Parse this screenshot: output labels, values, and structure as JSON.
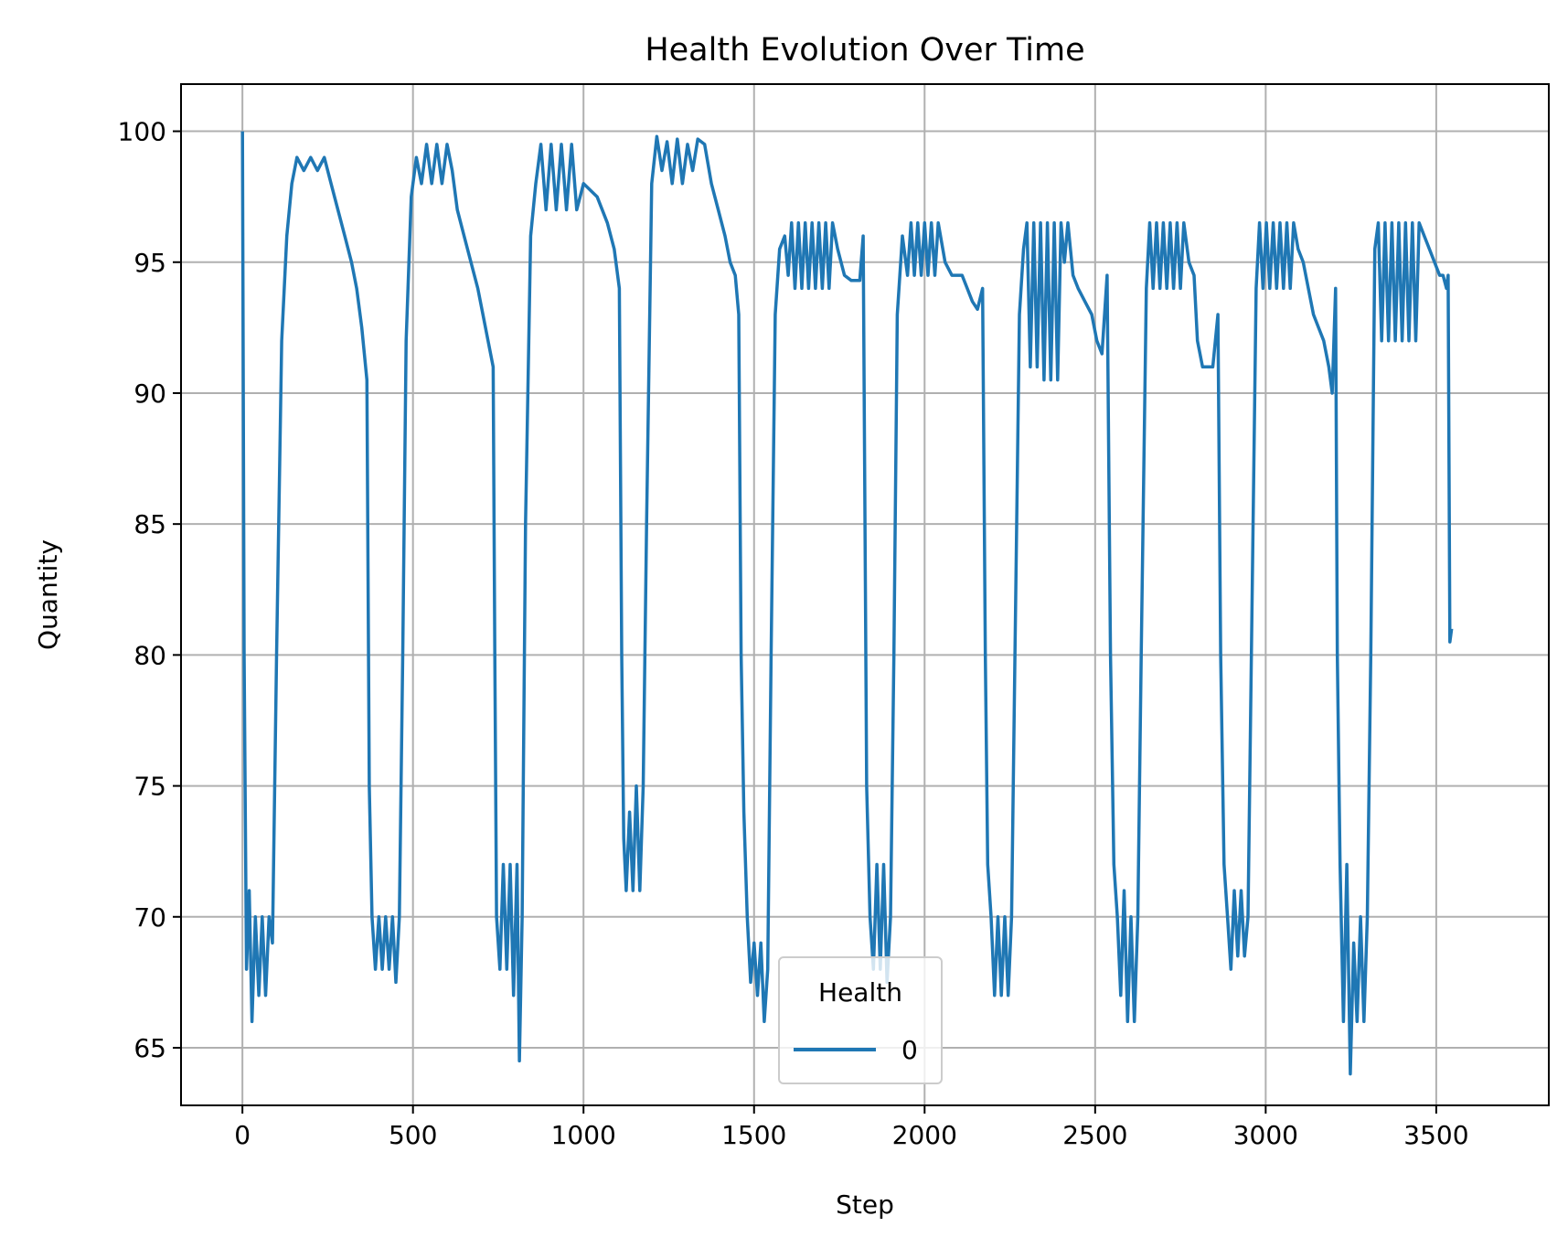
{
  "chart_data": {
    "type": "line",
    "title": "Health Evolution Over Time",
    "xlabel": "Step",
    "ylabel": "Quantity",
    "xlim": [
      -180,
      3830
    ],
    "ylim": [
      62.8,
      101.8
    ],
    "xticks": [
      0,
      500,
      1000,
      1500,
      2000,
      2500,
      3000,
      3500
    ],
    "yticks": [
      65,
      70,
      75,
      80,
      85,
      90,
      95,
      100
    ],
    "xtick_labels": [
      "0",
      "500",
      "1000",
      "1500",
      "2000",
      "2500",
      "3000",
      "3500"
    ],
    "ytick_labels": [
      "65",
      "70",
      "75",
      "80",
      "85",
      "90",
      "95",
      "100"
    ],
    "grid": true,
    "legend": {
      "title": "Health",
      "position": "lower center",
      "entries": [
        "0"
      ]
    },
    "series": [
      {
        "name": "0",
        "color": "#1f77b4",
        "points": [
          [
            0,
            100
          ],
          [
            5,
            80
          ],
          [
            12,
            68
          ],
          [
            20,
            71
          ],
          [
            28,
            66
          ],
          [
            38,
            70
          ],
          [
            48,
            67
          ],
          [
            58,
            70
          ],
          [
            68,
            67
          ],
          [
            78,
            70
          ],
          [
            88,
            69
          ],
          [
            100,
            80
          ],
          [
            115,
            92
          ],
          [
            130,
            96
          ],
          [
            145,
            98
          ],
          [
            160,
            99
          ],
          [
            180,
            98.5
          ],
          [
            200,
            99
          ],
          [
            220,
            98.5
          ],
          [
            240,
            99
          ],
          [
            260,
            98
          ],
          [
            280,
            97
          ],
          [
            300,
            96
          ],
          [
            320,
            95
          ],
          [
            335,
            94
          ],
          [
            350,
            92.5
          ],
          [
            365,
            90.5
          ],
          [
            372,
            75
          ],
          [
            380,
            70
          ],
          [
            390,
            68
          ],
          [
            400,
            70
          ],
          [
            410,
            68
          ],
          [
            420,
            70
          ],
          [
            430,
            68
          ],
          [
            440,
            70
          ],
          [
            450,
            67.5
          ],
          [
            460,
            70
          ],
          [
            470,
            80
          ],
          [
            480,
            92
          ],
          [
            495,
            97.5
          ],
          [
            510,
            99
          ],
          [
            525,
            98
          ],
          [
            540,
            99.5
          ],
          [
            555,
            98
          ],
          [
            570,
            99.5
          ],
          [
            585,
            98
          ],
          [
            600,
            99.5
          ],
          [
            615,
            98.5
          ],
          [
            630,
            97
          ],
          [
            650,
            96
          ],
          [
            670,
            95
          ],
          [
            690,
            94
          ],
          [
            705,
            93
          ],
          [
            720,
            92
          ],
          [
            735,
            91
          ],
          [
            740,
            80
          ],
          [
            745,
            70
          ],
          [
            755,
            68
          ],
          [
            765,
            72
          ],
          [
            775,
            68
          ],
          [
            785,
            72
          ],
          [
            795,
            67
          ],
          [
            805,
            72
          ],
          [
            812,
            64.5
          ],
          [
            820,
            70
          ],
          [
            830,
            85
          ],
          [
            845,
            96
          ],
          [
            860,
            98
          ],
          [
            875,
            99.5
          ],
          [
            890,
            97
          ],
          [
            905,
            99.5
          ],
          [
            920,
            97
          ],
          [
            935,
            99.5
          ],
          [
            950,
            97
          ],
          [
            965,
            99.5
          ],
          [
            980,
            97
          ],
          [
            1000,
            98
          ],
          [
            1040,
            97.5
          ],
          [
            1070,
            96.5
          ],
          [
            1090,
            95.5
          ],
          [
            1105,
            94
          ],
          [
            1112,
            80
          ],
          [
            1118,
            73
          ],
          [
            1125,
            71
          ],
          [
            1135,
            74
          ],
          [
            1145,
            71
          ],
          [
            1155,
            75
          ],
          [
            1165,
            71
          ],
          [
            1175,
            75
          ],
          [
            1185,
            85
          ],
          [
            1200,
            98
          ],
          [
            1215,
            99.8
          ],
          [
            1230,
            98.5
          ],
          [
            1245,
            99.6
          ],
          [
            1260,
            98
          ],
          [
            1275,
            99.7
          ],
          [
            1290,
            98
          ],
          [
            1305,
            99.5
          ],
          [
            1320,
            98.5
          ],
          [
            1335,
            99.7
          ],
          [
            1355,
            99.5
          ],
          [
            1375,
            98
          ],
          [
            1395,
            97
          ],
          [
            1415,
            96
          ],
          [
            1430,
            95
          ],
          [
            1445,
            94.5
          ],
          [
            1455,
            93
          ],
          [
            1462,
            80
          ],
          [
            1470,
            74
          ],
          [
            1480,
            70
          ],
          [
            1490,
            67.5
          ],
          [
            1500,
            69
          ],
          [
            1510,
            67
          ],
          [
            1520,
            69
          ],
          [
            1530,
            66
          ],
          [
            1540,
            68
          ],
          [
            1550,
            80
          ],
          [
            1562,
            93
          ],
          [
            1575,
            95.5
          ],
          [
            1590,
            96
          ],
          [
            1600,
            94.5
          ],
          [
            1610,
            96.5
          ],
          [
            1620,
            94
          ],
          [
            1630,
            96.5
          ],
          [
            1640,
            94
          ],
          [
            1650,
            96.5
          ],
          [
            1660,
            94
          ],
          [
            1670,
            96.5
          ],
          [
            1680,
            94
          ],
          [
            1690,
            96.5
          ],
          [
            1700,
            94
          ],
          [
            1710,
            96.5
          ],
          [
            1720,
            94
          ],
          [
            1730,
            96.5
          ],
          [
            1745,
            95.5
          ],
          [
            1765,
            94.5
          ],
          [
            1785,
            94.3
          ],
          [
            1810,
            94.3
          ],
          [
            1820,
            96
          ],
          [
            1830,
            75
          ],
          [
            1840,
            70
          ],
          [
            1850,
            68
          ],
          [
            1860,
            72
          ],
          [
            1870,
            68
          ],
          [
            1880,
            72
          ],
          [
            1890,
            67.5
          ],
          [
            1900,
            70
          ],
          [
            1910,
            80
          ],
          [
            1920,
            93
          ],
          [
            1935,
            96
          ],
          [
            1950,
            94.5
          ],
          [
            1960,
            96.5
          ],
          [
            1970,
            94.5
          ],
          [
            1980,
            96.5
          ],
          [
            1990,
            94.5
          ],
          [
            2000,
            96.5
          ],
          [
            2010,
            94.5
          ],
          [
            2020,
            96.5
          ],
          [
            2030,
            94.5
          ],
          [
            2040,
            96.5
          ],
          [
            2060,
            95
          ],
          [
            2080,
            94.5
          ],
          [
            2110,
            94.5
          ],
          [
            2125,
            94
          ],
          [
            2140,
            93.5
          ],
          [
            2155,
            93.2
          ],
          [
            2170,
            94
          ],
          [
            2178,
            80
          ],
          [
            2185,
            72
          ],
          [
            2195,
            70
          ],
          [
            2205,
            67
          ],
          [
            2215,
            70
          ],
          [
            2225,
            67
          ],
          [
            2235,
            70
          ],
          [
            2245,
            67
          ],
          [
            2255,
            70
          ],
          [
            2265,
            80
          ],
          [
            2278,
            93
          ],
          [
            2290,
            95.5
          ],
          [
            2300,
            96.5
          ],
          [
            2310,
            91
          ],
          [
            2320,
            96.5
          ],
          [
            2330,
            91
          ],
          [
            2340,
            96.5
          ],
          [
            2350,
            90.5
          ],
          [
            2360,
            96.5
          ],
          [
            2370,
            90.5
          ],
          [
            2380,
            96.5
          ],
          [
            2390,
            90.5
          ],
          [
            2400,
            96.5
          ],
          [
            2410,
            95
          ],
          [
            2420,
            96.5
          ],
          [
            2435,
            94.5
          ],
          [
            2450,
            94
          ],
          [
            2470,
            93.5
          ],
          [
            2490,
            93
          ],
          [
            2505,
            92
          ],
          [
            2520,
            91.5
          ],
          [
            2535,
            94.5
          ],
          [
            2545,
            80
          ],
          [
            2555,
            72
          ],
          [
            2565,
            70
          ],
          [
            2575,
            67
          ],
          [
            2585,
            71
          ],
          [
            2595,
            66
          ],
          [
            2605,
            70
          ],
          [
            2615,
            66
          ],
          [
            2625,
            70
          ],
          [
            2635,
            80
          ],
          [
            2650,
            94
          ],
          [
            2660,
            96.5
          ],
          [
            2670,
            94
          ],
          [
            2680,
            96.5
          ],
          [
            2690,
            94
          ],
          [
            2700,
            96.5
          ],
          [
            2710,
            94
          ],
          [
            2720,
            96.5
          ],
          [
            2730,
            94
          ],
          [
            2740,
            96.5
          ],
          [
            2750,
            94
          ],
          [
            2760,
            96.5
          ],
          [
            2775,
            95
          ],
          [
            2790,
            94.5
          ],
          [
            2800,
            92
          ],
          [
            2815,
            91
          ],
          [
            2830,
            91
          ],
          [
            2845,
            91
          ],
          [
            2860,
            93
          ],
          [
            2868,
            80
          ],
          [
            2878,
            72
          ],
          [
            2888,
            70
          ],
          [
            2898,
            68
          ],
          [
            2908,
            71
          ],
          [
            2918,
            68.5
          ],
          [
            2928,
            71
          ],
          [
            2938,
            68.5
          ],
          [
            2948,
            70
          ],
          [
            2958,
            80
          ],
          [
            2972,
            94
          ],
          [
            2982,
            96.5
          ],
          [
            2992,
            94
          ],
          [
            3002,
            96.5
          ],
          [
            3012,
            94
          ],
          [
            3022,
            96.5
          ],
          [
            3032,
            94
          ],
          [
            3042,
            96.5
          ],
          [
            3052,
            94
          ],
          [
            3062,
            96.5
          ],
          [
            3072,
            94
          ],
          [
            3082,
            96.5
          ],
          [
            3095,
            95.5
          ],
          [
            3110,
            95
          ],
          [
            3125,
            94
          ],
          [
            3140,
            93
          ],
          [
            3155,
            92.5
          ],
          [
            3170,
            92
          ],
          [
            3185,
            91
          ],
          [
            3195,
            90
          ],
          [
            3205,
            94
          ],
          [
            3210,
            80
          ],
          [
            3218,
            72
          ],
          [
            3228,
            66
          ],
          [
            3238,
            72
          ],
          [
            3248,
            64
          ],
          [
            3258,
            69
          ],
          [
            3268,
            66
          ],
          [
            3278,
            70
          ],
          [
            3288,
            66
          ],
          [
            3298,
            70
          ],
          [
            3308,
            80
          ],
          [
            3320,
            95.5
          ],
          [
            3330,
            96.5
          ],
          [
            3340,
            92
          ],
          [
            3350,
            96.5
          ],
          [
            3360,
            92
          ],
          [
            3370,
            96.5
          ],
          [
            3380,
            92
          ],
          [
            3390,
            96.5
          ],
          [
            3400,
            92
          ],
          [
            3410,
            96.5
          ],
          [
            3420,
            92
          ],
          [
            3430,
            96.5
          ],
          [
            3440,
            92
          ],
          [
            3450,
            96.5
          ],
          [
            3465,
            96
          ],
          [
            3480,
            95.5
          ],
          [
            3495,
            95
          ],
          [
            3510,
            94.5
          ],
          [
            3520,
            94.5
          ],
          [
            3530,
            94
          ],
          [
            3535,
            94.5
          ],
          [
            3540,
            80.5
          ],
          [
            3545,
            81
          ]
        ]
      }
    ]
  }
}
